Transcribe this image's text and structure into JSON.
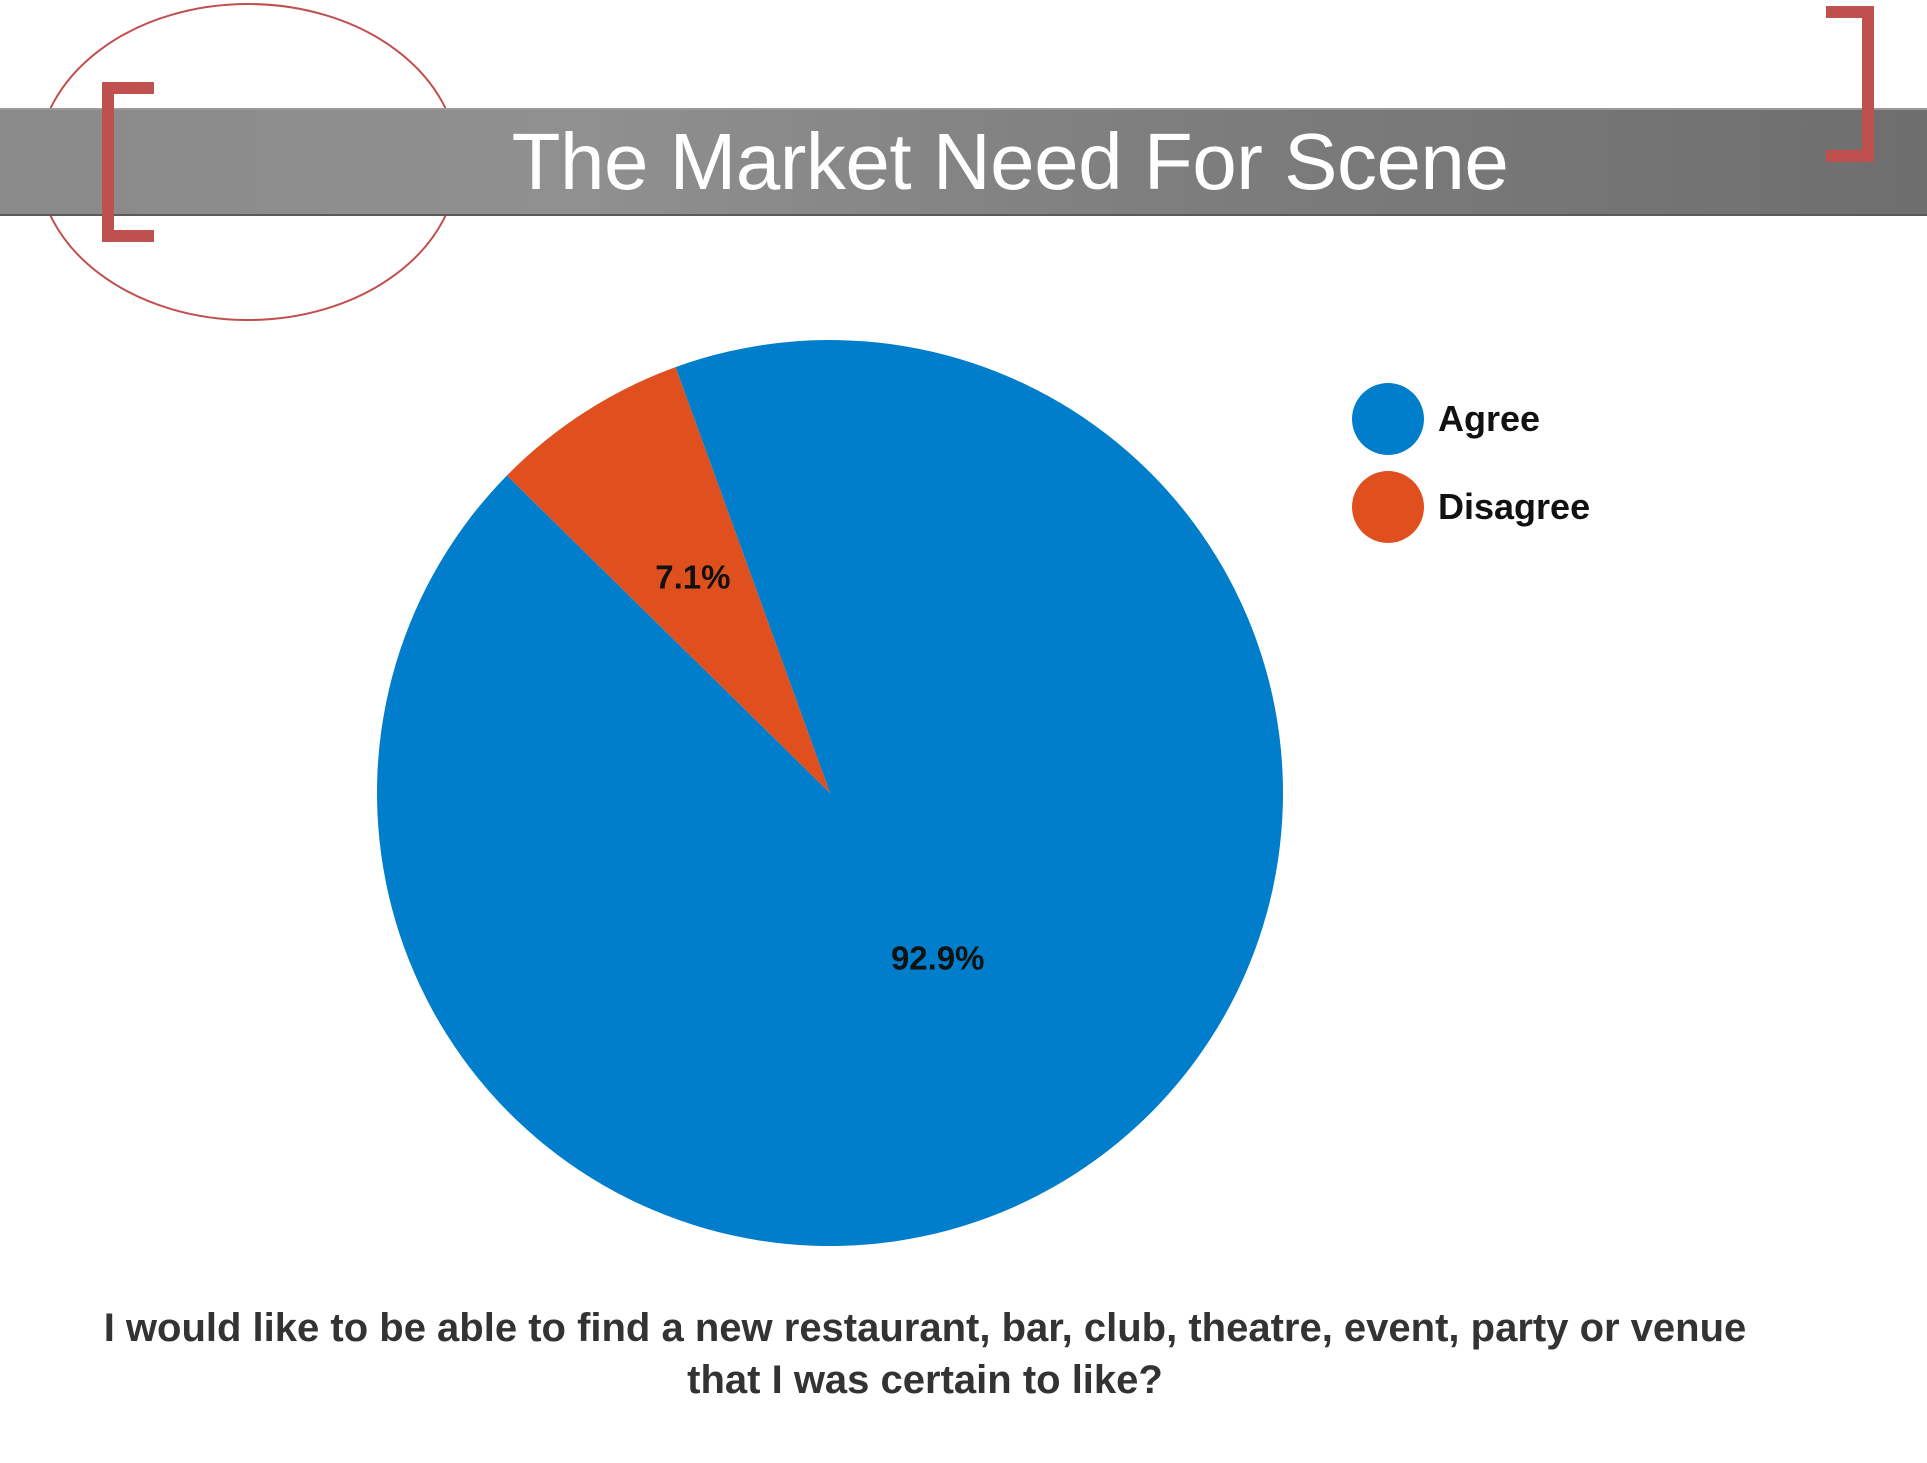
{
  "slide": {
    "title": "The Market Need For Scene",
    "question": "I would like to be able to find a new restaurant, bar, club, theatre, event, party or venue that I was certain to like?"
  },
  "colors": {
    "agree": "#007ecb",
    "disagree": "#e04f1e",
    "accent": "#c0504d",
    "title_bar": "#808080"
  },
  "chart_data": {
    "type": "pie",
    "categories": [
      "Agree",
      "Disagree"
    ],
    "values": [
      92.9,
      7.1
    ],
    "data_labels": [
      "92.9%",
      "7.1%"
    ],
    "legend": {
      "placement": "top-right",
      "entries": [
        "Agree",
        "Disagree"
      ]
    }
  }
}
